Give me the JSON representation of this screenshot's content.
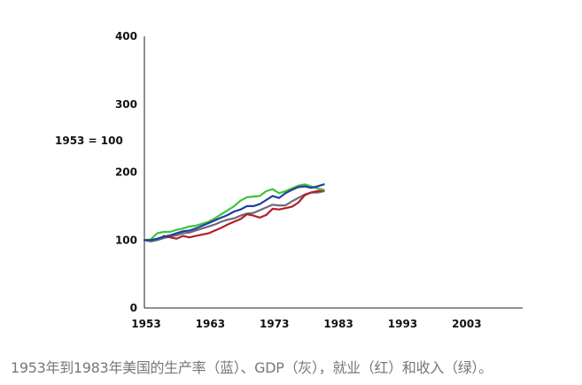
{
  "chart_data": {
    "type": "line",
    "ylabel": "1953 = 100",
    "xlim": [
      1953,
      2012
    ],
    "ylim": [
      0,
      400
    ],
    "xticks": [
      "1953",
      "1963",
      "1973",
      "1983",
      "1993",
      "2003"
    ],
    "yticks": [
      "0",
      "100",
      "200",
      "300",
      "400"
    ],
    "grid": false,
    "colors": {
      "productivity": "#1f3f9e",
      "gdp": "#6a6a7a",
      "employment": "#b0202a",
      "income": "#3fc23a"
    },
    "series": [
      {
        "key": "productivity",
        "x": [
          1953,
          1954,
          1955,
          1956,
          1957,
          1958,
          1959,
          1960,
          1961,
          1962,
          1963,
          1964,
          1965,
          1966,
          1967,
          1968,
          1969,
          1970,
          1971,
          1972,
          1973,
          1974,
          1975,
          1976,
          1977,
          1978,
          1979,
          1980,
          1981
        ],
        "y": [
          100,
          100,
          102,
          105,
          107,
          110,
          113,
          114,
          117,
          121,
          125,
          129,
          133,
          137,
          142,
          145,
          150,
          150,
          153,
          159,
          165,
          162,
          169,
          174,
          178,
          179,
          177,
          179,
          182
        ]
      },
      {
        "key": "gdp",
        "x": [
          1953,
          1954,
          1955,
          1956,
          1957,
          1958,
          1959,
          1960,
          1961,
          1962,
          1963,
          1964,
          1965,
          1966,
          1967,
          1968,
          1969,
          1970,
          1971,
          1972,
          1973,
          1974,
          1975,
          1976,
          1977,
          1978,
          1979,
          1980,
          1981
        ],
        "y": [
          100,
          98,
          100,
          103,
          105,
          107,
          110,
          111,
          114,
          117,
          120,
          123,
          127,
          130,
          132,
          136,
          139,
          140,
          144,
          148,
          152,
          151,
          151,
          157,
          162,
          167,
          170,
          170,
          172
        ]
      },
      {
        "key": "employment",
        "x": [
          1956,
          1957,
          1958,
          1959,
          1960,
          1961,
          1962,
          1963,
          1964,
          1965,
          1966,
          1967,
          1968,
          1969,
          1970,
          1971,
          1972,
          1973,
          1974,
          1975,
          1976,
          1977,
          1978,
          1979,
          1980,
          1981
        ],
        "y": [
          106,
          104,
          102,
          106,
          104,
          106,
          108,
          110,
          114,
          118,
          123,
          127,
          131,
          138,
          136,
          133,
          137,
          146,
          145,
          147,
          149,
          155,
          166,
          170,
          172,
          173
        ]
      },
      {
        "key": "income",
        "x": [
          1953,
          1954,
          1955,
          1956,
          1957,
          1958,
          1959,
          1960,
          1961,
          1962,
          1963,
          1964,
          1965,
          1966,
          1967,
          1968,
          1969,
          1970,
          1971,
          1972,
          1973,
          1974,
          1975,
          1976,
          1977,
          1978,
          1979,
          1980,
          1981
        ],
        "y": [
          100,
          101,
          110,
          112,
          112,
          115,
          117,
          120,
          121,
          124,
          127,
          132,
          138,
          144,
          150,
          158,
          163,
          164,
          165,
          172,
          175,
          169,
          172,
          176,
          180,
          182,
          179,
          176,
          174
        ]
      }
    ],
    "caption": "1953年到1983年美国的生产率（蓝）、GDP（灰），就业（红）和收入（绿）。"
  }
}
